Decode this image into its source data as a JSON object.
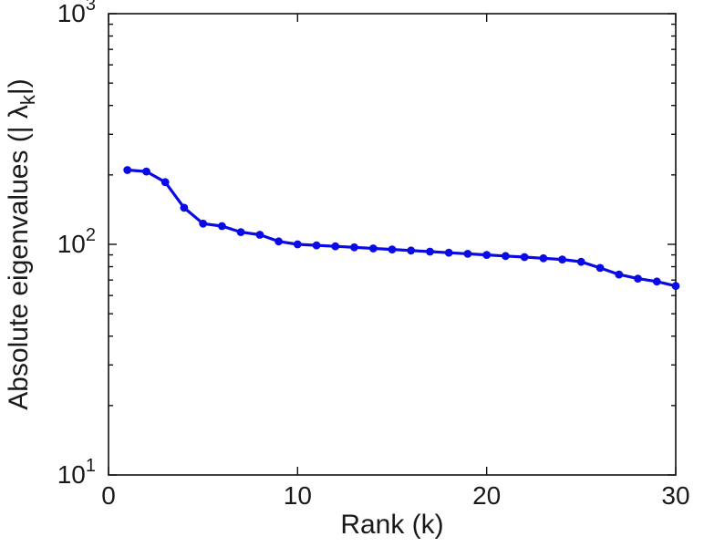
{
  "chart_data": {
    "type": "line",
    "title": "",
    "xlabel": "Rank (k)",
    "ylabel_prefix": "Absolute eigenvalues (| ",
    "ylabel_lambda": "λ",
    "ylabel_subscript": "k",
    "ylabel_suffix": "|)",
    "x": [
      1,
      2,
      3,
      4,
      5,
      6,
      7,
      8,
      9,
      10,
      11,
      12,
      13,
      14,
      15,
      16,
      17,
      18,
      19,
      20,
      21,
      22,
      23,
      24,
      25,
      26,
      27,
      28,
      29,
      30
    ],
    "values": [
      210,
      207,
      186,
      144,
      123,
      120,
      113,
      110,
      103,
      100,
      99,
      98,
      97,
      96,
      95,
      94,
      93,
      92,
      91,
      90,
      89,
      88,
      87,
      86,
      84,
      79,
      74,
      71,
      69,
      66
    ],
    "xlim": [
      0,
      30
    ],
    "ylim": [
      10,
      1000
    ],
    "yscale": "log",
    "x_ticks": [
      "0",
      "10",
      "20",
      "30"
    ],
    "x_tick_values": [
      0,
      10,
      20,
      30
    ],
    "y_tick_base": "10",
    "y_tick_exponents": [
      "1",
      "2",
      "3"
    ],
    "y_tick_exponent_values": [
      1,
      2,
      3
    ],
    "grid": false,
    "legend": null,
    "line_color": "#0a0ae6",
    "axis_color": "#111111",
    "label_color": "#1a1a1a",
    "marker": "circle"
  }
}
